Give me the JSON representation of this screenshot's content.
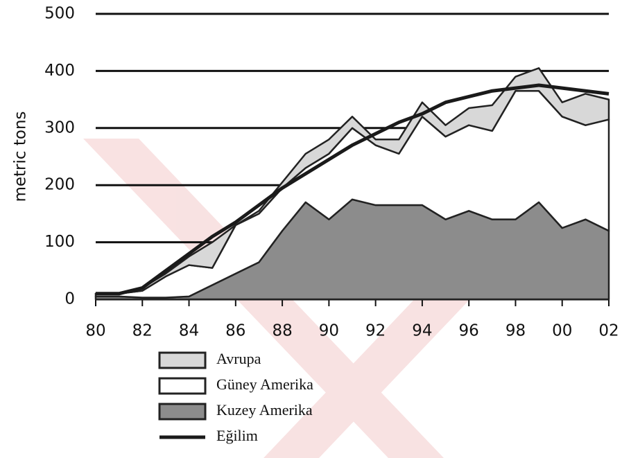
{
  "chart_data": {
    "type": "stacked_area",
    "y_label": "metric tons",
    "x": [
      1980,
      1981,
      1982,
      1983,
      1984,
      1985,
      1986,
      1987,
      1988,
      1989,
      1990,
      1991,
      1992,
      1993,
      1994,
      1995,
      1996,
      1997,
      1998,
      1999,
      2000,
      2001,
      2002
    ],
    "series": [
      {
        "name": "Avrupa",
        "color": "#d8d8d8",
        "kind": "area",
        "values": [
          0,
          0,
          5,
          5,
          15,
          45,
          0,
          5,
          10,
          25,
          25,
          20,
          10,
          25,
          25,
          20,
          30,
          45,
          25,
          40,
          25,
          55,
          35
        ]
      },
      {
        "name": "Güney Amerika",
        "color": "#ffffff",
        "kind": "area",
        "values": [
          5,
          5,
          12,
          37,
          55,
          30,
          85,
          85,
          75,
          60,
          115,
          125,
          105,
          90,
          155,
          145,
          150,
          155,
          225,
          195,
          195,
          165,
          195
        ]
      },
      {
        "name": "Kuzey Amerika",
        "color": "#8c8c8c",
        "kind": "area",
        "values": [
          5,
          5,
          3,
          3,
          5,
          25,
          45,
          65,
          120,
          170,
          140,
          175,
          165,
          165,
          165,
          140,
          155,
          140,
          140,
          170,
          125,
          140,
          120
        ]
      },
      {
        "name": "Eğilim",
        "color": "#1a1a1a",
        "kind": "line",
        "values": [
          10,
          10,
          20,
          50,
          80,
          110,
          135,
          165,
          195,
          220,
          245,
          270,
          290,
          310,
          325,
          345,
          355,
          365,
          370,
          375,
          370,
          365,
          360
        ]
      }
    ],
    "xlim": [
      1980,
      2002
    ],
    "xticks": [
      {
        "value": 1980,
        "label": "80"
      },
      {
        "value": 1982,
        "label": "82"
      },
      {
        "value": 1984,
        "label": "84"
      },
      {
        "value": 1986,
        "label": "86"
      },
      {
        "value": 1988,
        "label": "88"
      },
      {
        "value": 1990,
        "label": "90"
      },
      {
        "value": 1992,
        "label": "92"
      },
      {
        "value": 1994,
        "label": "94"
      },
      {
        "value": 1996,
        "label": "96"
      },
      {
        "value": 1998,
        "label": "98"
      },
      {
        "value": 2000,
        "label": "00"
      },
      {
        "value": 2002,
        "label": "02"
      }
    ],
    "ylim": [
      0,
      500
    ],
    "yticks": [
      0,
      100,
      200,
      300,
      400,
      500
    ],
    "grid": true
  }
}
